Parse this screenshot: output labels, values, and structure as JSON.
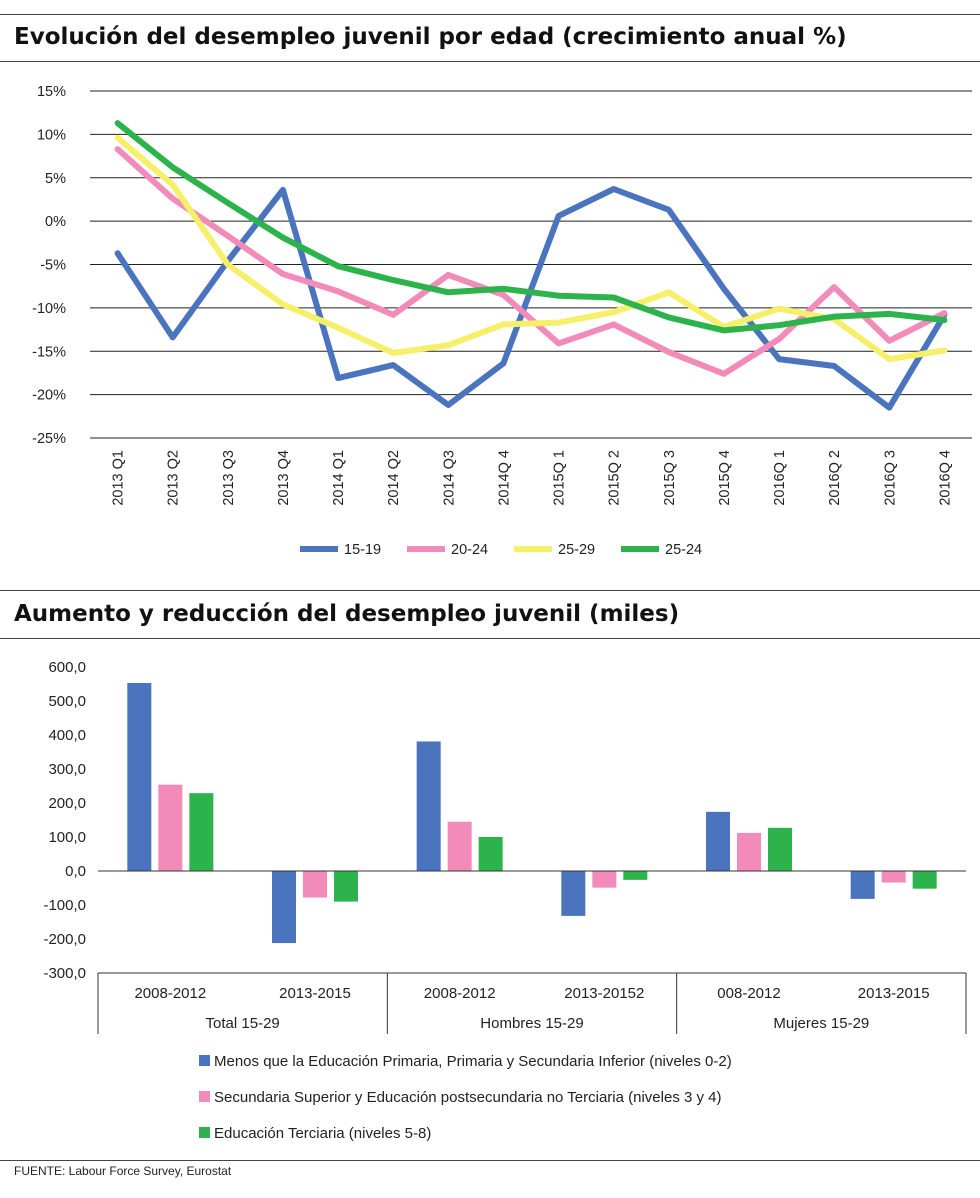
{
  "chart_data": [
    {
      "type": "line",
      "title": "Evolución del desempleo juvenil por edad (crecimiento anual %)",
      "categories": [
        "2013 Q1",
        "2013 Q2",
        "2013 Q3",
        "2013 Q4",
        "2014 Q1",
        "2014 Q2",
        "2014 Q3",
        "2014Q 4",
        "2015Q 1",
        "2015Q 2",
        "2015Q 3",
        "2015Q 4",
        "2016Q 1",
        "2016Q 2",
        "2016Q 3",
        "2016Q 4"
      ],
      "y_ticks": [
        "15%",
        "10%",
        "5%",
        "0%",
        "-5%",
        "-10%",
        "-15%",
        "-20%",
        "-25%"
      ],
      "ylim": [
        -25,
        15
      ],
      "series": [
        {
          "name": "15-19",
          "color": "#4a74bd",
          "values": [
            -3.7,
            -13.4,
            -4.6,
            3.6,
            -18.1,
            -16.6,
            -21.2,
            -16.4,
            0.6,
            3.7,
            1.3,
            -7.8,
            -15.9,
            -16.7,
            -21.5,
            -10.8
          ]
        },
        {
          "name": "20-24",
          "color": "#f28bba",
          "values": [
            8.3,
            2.6,
            -1.7,
            -6.1,
            -8.1,
            -10.8,
            -6.2,
            -8.5,
            -14.1,
            -11.9,
            -15.1,
            -17.6,
            -13.6,
            -7.6,
            -13.8,
            -10.6
          ]
        },
        {
          "name": "25-29",
          "color": "#f6ef6a",
          "values": [
            9.6,
            4.2,
            -5.0,
            -9.6,
            -12.3,
            -15.2,
            -14.3,
            -11.9,
            -11.7,
            -10.5,
            -8.2,
            -12.2,
            -10.1,
            -11.3,
            -15.9,
            -14.9
          ]
        },
        {
          "name": "25-24",
          "color": "#2db34b",
          "values": [
            11.3,
            6.2,
            2.1,
            -1.9,
            -5.2,
            -6.8,
            -8.2,
            -7.8,
            -8.6,
            -8.8,
            -11.1,
            -12.6,
            -12.0,
            -11.0,
            -10.7,
            -11.4
          ]
        }
      ]
    },
    {
      "type": "bar",
      "title": "Aumento y reducción del desempleo juvenil (miles)",
      "categories": [
        "2008-2012",
        "2013-2015",
        "2008-2012",
        "2013-20152",
        "008-2012",
        "2013-2015"
      ],
      "groups": [
        "Total 15-29",
        "Hombres 15-29",
        "Mujeres 15-29"
      ],
      "y_ticks": [
        "600,0",
        "500,0",
        "400,0",
        "300,0",
        "200,0",
        "100,0",
        "0,0",
        "-100,0",
        "-200,0",
        "-300,0"
      ],
      "ylim": [
        -300,
        600
      ],
      "series": [
        {
          "name": "Menos que la Educación Primaria, Primaria y Secundaria Inferior (niveles 0-2)",
          "color": "#4a74bd",
          "values": [
            553,
            -212,
            381,
            -132,
            174,
            -82
          ]
        },
        {
          "name": "Secundaria Superior y Educación postsecundaria no Terciaria (niveles 3 y 4)",
          "color": "#f28bba",
          "values": [
            254,
            -78,
            145,
            -49,
            112,
            -34
          ]
        },
        {
          "name": "Educación Terciaria (niveles 5-8)",
          "color": "#2db34b",
          "values": [
            229,
            -90,
            100,
            -26,
            127,
            -52
          ]
        }
      ]
    }
  ],
  "source": "FUENTE: Labour Force Survey, Eurostat"
}
